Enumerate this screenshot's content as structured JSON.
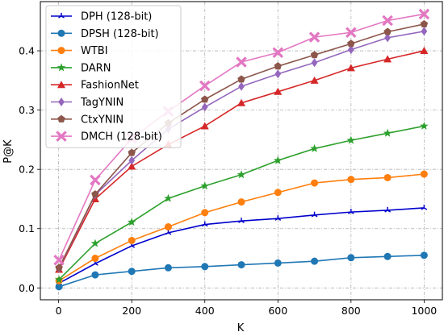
{
  "chart_data": {
    "type": "line",
    "title": "",
    "xlabel": "K",
    "ylabel": "P@K",
    "xlim": [
      -50,
      1050
    ],
    "ylim": [
      -0.02,
      0.483
    ],
    "x_ticks": [
      "0",
      "200",
      "400",
      "600",
      "800",
      "1000"
    ],
    "y_ticks": [
      "0.0",
      "0.1",
      "0.2",
      "0.3",
      "0.4"
    ],
    "grid": true,
    "legend_position": "top-left",
    "x": [
      1,
      100,
      200,
      300,
      400,
      500,
      600,
      700,
      800,
      900,
      1000
    ],
    "series": [
      {
        "name": "DPH (128-bit)",
        "color": "#0000cc",
        "marker": "tri",
        "values": [
          0.008,
          0.041,
          0.071,
          0.093,
          0.107,
          0.113,
          0.117,
          0.123,
          0.128,
          0.131,
          0.135
        ]
      },
      {
        "name": "DPSH (128-bit)",
        "color": "#1f77b4",
        "marker": "circle",
        "values": [
          0.002,
          0.022,
          0.028,
          0.034,
          0.036,
          0.039,
          0.042,
          0.045,
          0.051,
          0.053,
          0.055
        ]
      },
      {
        "name": "WTBI",
        "color": "#ff7f0e",
        "marker": "circle",
        "values": [
          0.012,
          0.05,
          0.08,
          0.103,
          0.127,
          0.145,
          0.161,
          0.177,
          0.183,
          0.186,
          0.192
        ]
      },
      {
        "name": "DARN",
        "color": "#2ca02c",
        "marker": "star",
        "values": [
          0.014,
          0.075,
          0.111,
          0.151,
          0.172,
          0.191,
          0.215,
          0.235,
          0.249,
          0.261,
          0.273
        ]
      },
      {
        "name": "FashionNet",
        "color": "#d62728",
        "marker": "triangle",
        "values": [
          0.031,
          0.15,
          0.205,
          0.242,
          0.273,
          0.312,
          0.331,
          0.35,
          0.371,
          0.386,
          0.4
        ]
      },
      {
        "name": "TagYNIN",
        "color": "#9467bd",
        "marker": "diamond",
        "values": [
          0.033,
          0.157,
          0.215,
          0.268,
          0.305,
          0.34,
          0.361,
          0.38,
          0.402,
          0.422,
          0.433
        ]
      },
      {
        "name": "CtxYNIN",
        "color": "#8c564b",
        "marker": "pentagon",
        "values": [
          0.034,
          0.158,
          0.228,
          0.278,
          0.318,
          0.352,
          0.374,
          0.393,
          0.412,
          0.432,
          0.445
        ]
      },
      {
        "name": "DMCH (128-bit)",
        "color": "#e377c2",
        "marker": "x",
        "values": [
          0.047,
          0.182,
          0.252,
          0.298,
          0.341,
          0.381,
          0.397,
          0.423,
          0.431,
          0.451,
          0.462
        ]
      }
    ]
  }
}
